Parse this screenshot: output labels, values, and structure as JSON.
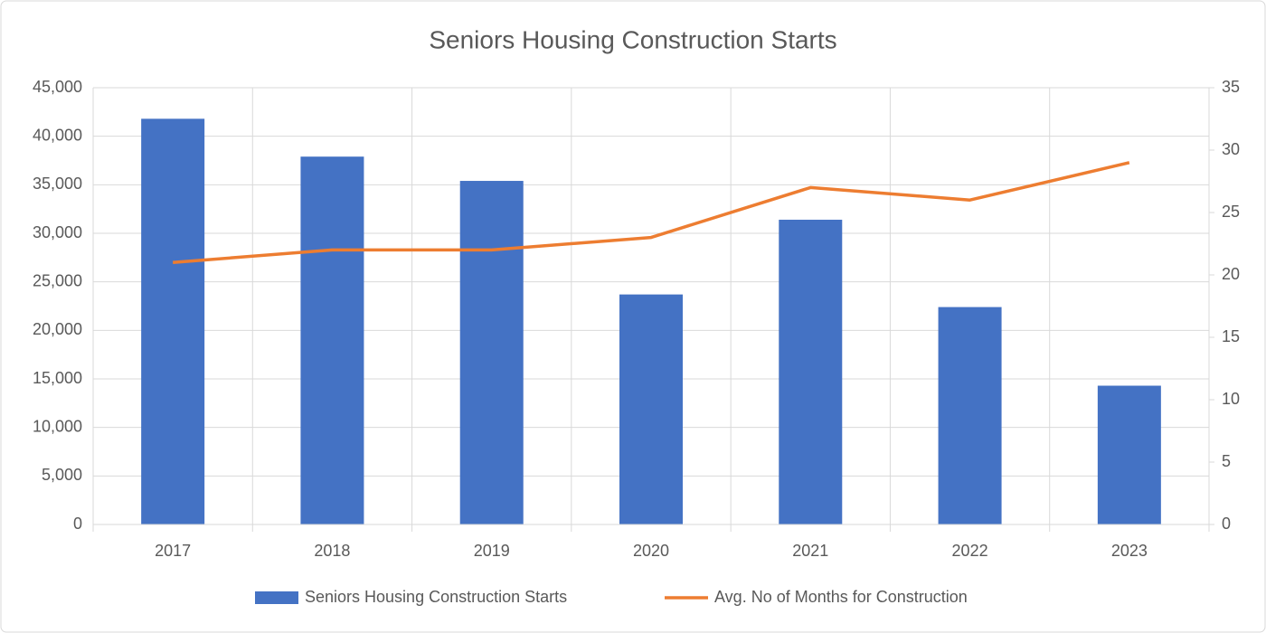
{
  "chart_data": {
    "type": "bar",
    "title": "Seniors Housing Construction Starts",
    "categories": [
      "2017",
      "2018",
      "2019",
      "2020",
      "2021",
      "2022",
      "2023"
    ],
    "series": [
      {
        "name": "Seniors Housing Construction Starts",
        "type": "bar",
        "color": "#4472c4",
        "values": [
          41800,
          37900,
          35400,
          23700,
          31400,
          22400,
          14300
        ]
      },
      {
        "name": "Avg. No of Months for Construction",
        "type": "line",
        "axis": "y2",
        "color": "#ed7d31",
        "values": [
          21,
          22,
          22,
          23,
          27,
          26,
          29
        ]
      }
    ],
    "ylim": [
      0,
      45000
    ],
    "yticks": [
      0,
      {
        "value": 5000,
        "label": "5,000"
      },
      {
        "value": 10000,
        "label": "10,000"
      },
      {
        "value": 15000,
        "label": "15,000"
      },
      {
        "value": 20000,
        "label": "20,000"
      },
      {
        "value": 25000,
        "label": "25,000"
      },
      {
        "value": 30000,
        "label": "30,000"
      },
      {
        "value": 35000,
        "label": "35,000"
      },
      {
        "value": 40000,
        "label": "40,000"
      },
      {
        "value": 45000,
        "label": "45,000"
      }
    ],
    "y2lim": [
      0,
      35
    ],
    "y2ticks": [
      0,
      5,
      10,
      15,
      20,
      25,
      30,
      35
    ],
    "grid": true,
    "legend": "bottom"
  }
}
